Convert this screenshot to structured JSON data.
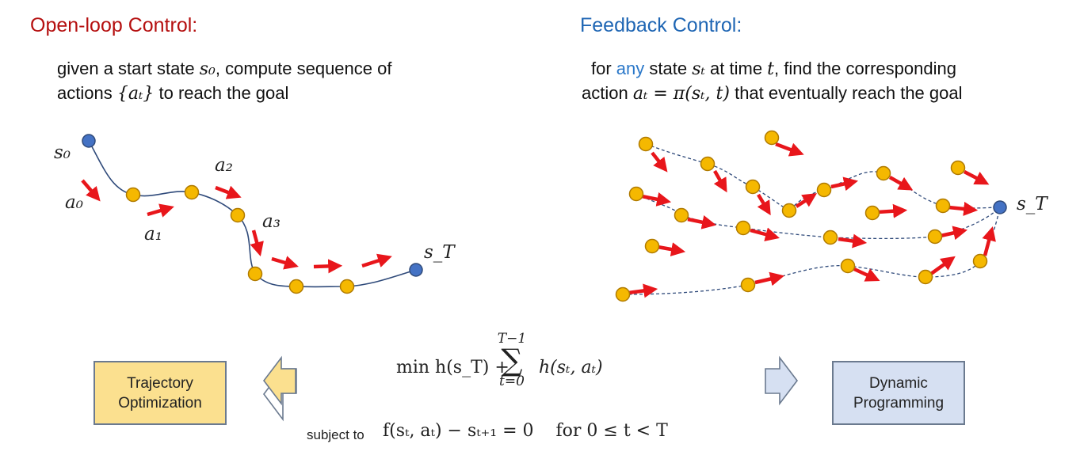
{
  "open_loop": {
    "title": "Open-loop Control:",
    "desc_pre": "given a start state ",
    "desc_s0": "s₀",
    "desc_mid": ", compute sequence of",
    "desc_line2_pre": "actions ",
    "desc_at": "{aₜ}",
    "desc_line2_post": " to reach the goal",
    "labels": {
      "s0": "s₀",
      "a0": "a₀",
      "a1": "a₁",
      "a2": "a₂",
      "a3": "a₃",
      "sT": "s_T"
    }
  },
  "feedback": {
    "title": "Feedback Control:",
    "desc_pre": "for ",
    "desc_any": "any",
    "desc_mid": " state ",
    "desc_st": "sₜ",
    "desc_attime": " at time ",
    "desc_t": "t",
    "desc_post": ", find the corresponding",
    "desc_line2_pre": "action ",
    "desc_eq": "aₜ = π(sₜ, t)",
    "desc_line2_post": " that eventually reach the goal",
    "labels": {
      "sT": "s_T"
    }
  },
  "optimization": {
    "objective_min": "min h(s_T) + ",
    "sum_top": "T−1",
    "sum_symbol": "∑",
    "sum_bottom": "t=0",
    "objective_term": "h(sₜ, aₜ)",
    "subject_to": "subject to",
    "constraint": "f(sₜ, aₜ) − sₜ₊₁ = 0    for 0 ≤ t < T"
  },
  "boxes": {
    "trajectory": [
      "Trajectory",
      "Optimization"
    ],
    "dynamic": [
      "Dynamic",
      "Programming"
    ]
  },
  "colors": {
    "start_node": "#4472c4",
    "node": "#f5b800",
    "arrow": "#e8161b",
    "curve": "#2f4a7a",
    "box_yellow": "#fbe08f",
    "box_blue": "#d6e0f2"
  }
}
